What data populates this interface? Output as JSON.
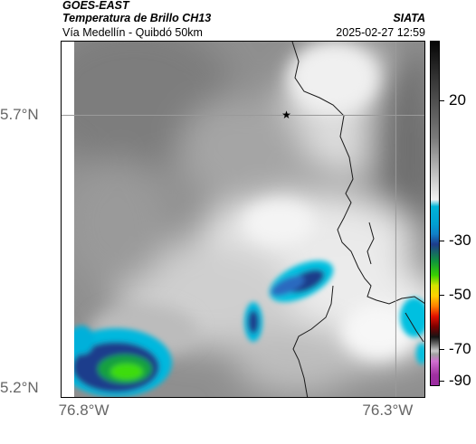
{
  "header": {
    "line1": "GOES-EAST",
    "line2": "Temperatura de Brillo CH13",
    "line3": "Vía Medellín - Quibdó 50km",
    "brand": "SIATA",
    "timestamp": "2025-02-27 12:59"
  },
  "map": {
    "lon_range": [
      -76.85,
      -76.25
    ],
    "lat_range": [
      5.2,
      5.83
    ],
    "lat_ticks": [
      {
        "value": 5.7,
        "label": "5.7°N"
      },
      {
        "value": 5.2,
        "label": "5.2°N"
      }
    ],
    "lon_ticks": [
      {
        "value": -76.8,
        "label": "76.8°W"
      },
      {
        "value": -76.3,
        "label": "76.3°W"
      }
    ],
    "grid": true,
    "marker": {
      "lon": -76.48,
      "lat": 5.7,
      "symbol": "★"
    },
    "colors": {
      "grid": "#9a9a9a",
      "border": "#000000"
    }
  },
  "colorbar": {
    "ticks": [
      {
        "value": 20,
        "label": "20"
      },
      {
        "value": -30,
        "label": "-30"
      },
      {
        "value": -50,
        "label": "-50"
      },
      {
        "value": -70,
        "label": "-70"
      },
      {
        "value": -90,
        "label": "-90"
      }
    ]
  }
}
